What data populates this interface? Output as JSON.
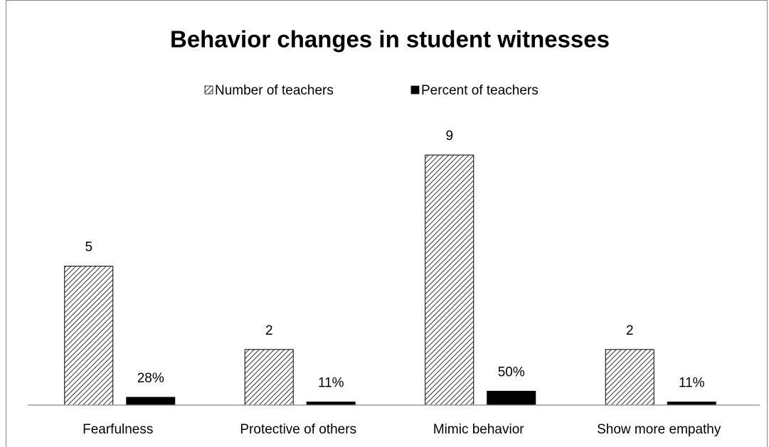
{
  "chart_data": {
    "type": "bar",
    "title": "Behavior changes in student witnesses",
    "categories": [
      "Fearfulness",
      "Protective of others",
      "Mimic behavior",
      "Show more empathy"
    ],
    "series": [
      {
        "name": "Number of teachers",
        "color": "#000000",
        "pattern": "hatch",
        "values": [
          5,
          2,
          9,
          2
        ]
      },
      {
        "name": "Percent of teachers",
        "color": "#000000",
        "values": [
          0.28,
          0.11,
          0.5,
          0.11
        ],
        "value_labels": [
          "28%",
          "11%",
          "50%",
          "11%"
        ]
      }
    ],
    "ylim": [
      0,
      10
    ],
    "legend": "top",
    "grid": false
  }
}
